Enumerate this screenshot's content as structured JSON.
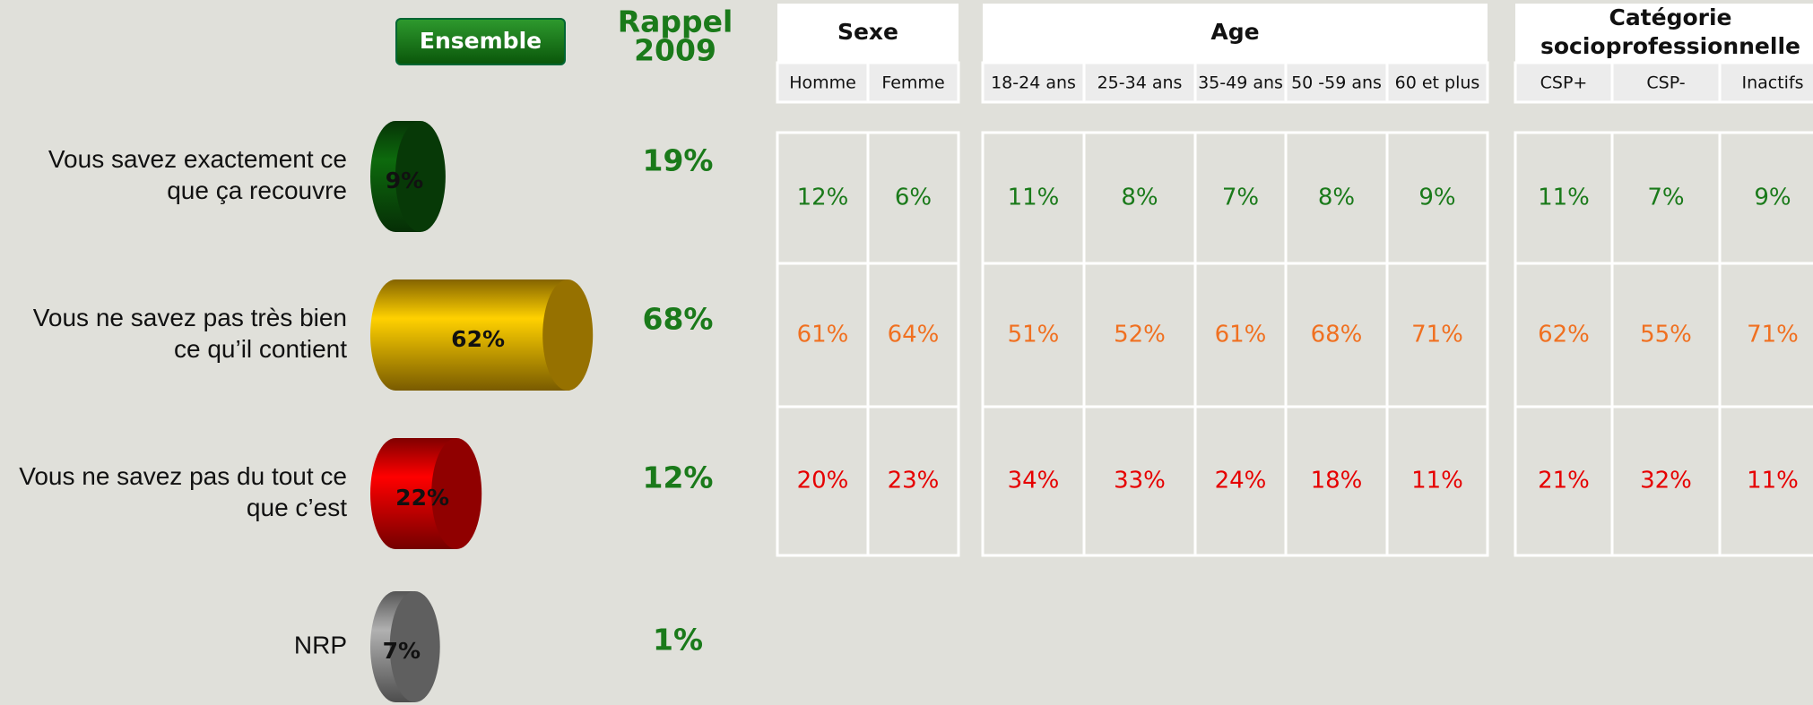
{
  "chart_data": {
    "type": "bar",
    "title": "Ensemble",
    "categories": [
      [
        "Vous savez exactement ce",
        "que ça recouvre"
      ],
      [
        "Vous ne savez pas très bien",
        "ce qu’il contient"
      ],
      [
        "Vous ne savez pas du tout ce",
        "que c’est"
      ],
      [
        "NRP"
      ]
    ],
    "values": [
      9,
      62,
      22,
      7
    ],
    "value_labels": [
      "9%",
      "62%",
      "22%",
      "7%"
    ],
    "colors": [
      "#0b5c0b",
      "#f2b600",
      "#e80000",
      "#9a9a9a"
    ]
  },
  "rappel": {
    "title": [
      "Rappel",
      "2009"
    ],
    "values": [
      "19%",
      "68%",
      "12%",
      "1%"
    ]
  },
  "table": {
    "groups": [
      {
        "name": [
          "Sexe"
        ],
        "columns": [
          "Homme",
          "Femme"
        ]
      },
      {
        "name": [
          "Age"
        ],
        "columns": [
          "18-24 ans",
          "25-34 ans",
          "35-49 ans",
          "50 -59 ans",
          "60 et plus"
        ]
      },
      {
        "name": [
          "Catégorie",
          "socioprofessionnelle"
        ],
        "columns": [
          "CSP+",
          "CSP-",
          "Inactifs"
        ]
      }
    ],
    "row_colors": [
      "#1a7a1a",
      "#f07020",
      "#e60000"
    ],
    "rows": [
      [
        "12%",
        "6%",
        "11%",
        "8%",
        "7%",
        "8%",
        "9%",
        "11%",
        "7%",
        "9%"
      ],
      [
        "61%",
        "64%",
        "51%",
        "52%",
        "61%",
        "68%",
        "71%",
        "62%",
        "55%",
        "71%"
      ],
      [
        "20%",
        "23%",
        "34%",
        "33%",
        "24%",
        "18%",
        "11%",
        "21%",
        "32%",
        "11%"
      ]
    ]
  }
}
